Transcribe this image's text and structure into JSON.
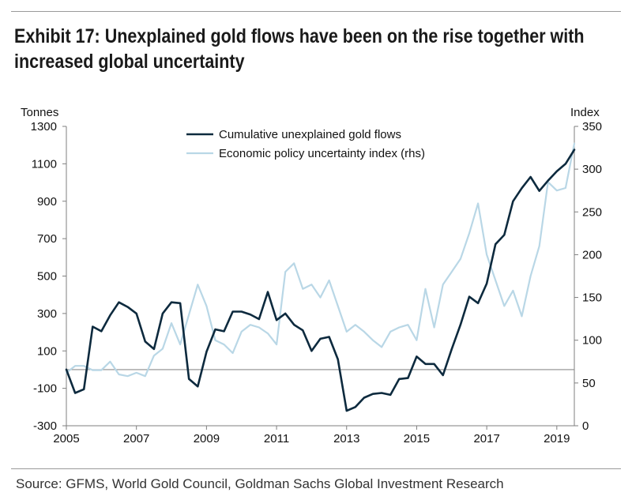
{
  "title": "Exhibit 17: Unexplained gold flows have been on the rise together with increased global uncertainty",
  "source": "Source: GFMS, World Gold Council, Goldman Sachs Global Investment Research",
  "colors": {
    "flows": "#0d2a3e",
    "uncertainty": "#b9d7e6",
    "axis": "#7f7f7f",
    "zero_line": "#8c8c8c"
  },
  "chart_data": {
    "type": "line",
    "title": "Exhibit 17: Unexplained gold flows have been on the rise together with increased global uncertainty",
    "ylabel": "Tonnes",
    "y2label": "Index",
    "xlim": [
      2005,
      2019.5
    ],
    "ylim": [
      -300,
      1300
    ],
    "y2lim": [
      0,
      350
    ],
    "x_ticks": [
      2005,
      2007,
      2009,
      2011,
      2013,
      2015,
      2017,
      2019
    ],
    "x_tick_labels": [
      "2005",
      "2007",
      "2009",
      "2011",
      "2013",
      "2015",
      "2017",
      "2019"
    ],
    "y_ticks": [
      -300,
      -100,
      100,
      300,
      500,
      700,
      900,
      1100,
      1300
    ],
    "y_tick_labels": [
      "-300",
      "-100",
      "100",
      "300",
      "500",
      "700",
      "900",
      "1100",
      "1300"
    ],
    "y2_ticks": [
      0,
      50,
      100,
      150,
      200,
      250,
      300,
      350
    ],
    "y2_tick_labels": [
      "0",
      "50",
      "100",
      "150",
      "200",
      "250",
      "300",
      "350"
    ],
    "zero_line": 0,
    "legend_position": "top-center",
    "series": [
      {
        "name": "Cumulative unexplained gold flows",
        "axis": "left",
        "x": [
          2005.0,
          2005.25,
          2005.5,
          2005.75,
          2006.0,
          2006.25,
          2006.5,
          2006.75,
          2007.0,
          2007.25,
          2007.5,
          2007.75,
          2008.0,
          2008.25,
          2008.5,
          2008.75,
          2009.0,
          2009.25,
          2009.5,
          2009.75,
          2010.0,
          2010.25,
          2010.5,
          2010.75,
          2011.0,
          2011.25,
          2011.5,
          2011.75,
          2012.0,
          2012.25,
          2012.5,
          2012.75,
          2013.0,
          2013.25,
          2013.5,
          2013.75,
          2014.0,
          2014.25,
          2014.5,
          2014.75,
          2015.0,
          2015.25,
          2015.5,
          2015.75,
          2016.0,
          2016.25,
          2016.5,
          2016.75,
          2017.0,
          2017.25,
          2017.5,
          2017.75,
          2018.0,
          2018.25,
          2018.5,
          2018.75,
          2019.0,
          2019.25,
          2019.5
        ],
        "values": [
          0,
          -125,
          -105,
          230,
          205,
          290,
          360,
          335,
          300,
          150,
          110,
          300,
          360,
          355,
          -50,
          -90,
          95,
          215,
          205,
          310,
          310,
          295,
          270,
          415,
          265,
          300,
          240,
          210,
          100,
          165,
          175,
          55,
          -220,
          -200,
          -150,
          -130,
          -125,
          -135,
          -50,
          -45,
          70,
          30,
          30,
          -30,
          110,
          240,
          390,
          355,
          460,
          670,
          720,
          900,
          970,
          1030,
          955,
          1010,
          1060,
          1100,
          1175
        ]
      },
      {
        "name": "Economic policy uncertainty index (rhs)",
        "axis": "right",
        "x": [
          2005.0,
          2005.25,
          2005.5,
          2005.75,
          2006.0,
          2006.25,
          2006.5,
          2006.75,
          2007.0,
          2007.25,
          2007.5,
          2007.75,
          2008.0,
          2008.25,
          2008.5,
          2008.75,
          2009.0,
          2009.25,
          2009.5,
          2009.75,
          2010.0,
          2010.25,
          2010.5,
          2010.75,
          2011.0,
          2011.25,
          2011.5,
          2011.75,
          2012.0,
          2012.25,
          2012.5,
          2012.75,
          2013.0,
          2013.25,
          2013.5,
          2013.75,
          2014.0,
          2014.25,
          2014.5,
          2014.75,
          2015.0,
          2015.25,
          2015.5,
          2015.75,
          2016.0,
          2016.25,
          2016.5,
          2016.75,
          2017.0,
          2017.25,
          2017.5,
          2017.75,
          2018.0,
          2018.25,
          2018.5,
          2018.75,
          2019.0,
          2019.25,
          2019.5
        ],
        "values": [
          62,
          70,
          70,
          65,
          65,
          75,
          60,
          58,
          62,
          58,
          82,
          90,
          120,
          95,
          130,
          165,
          140,
          100,
          95,
          85,
          110,
          118,
          115,
          108,
          95,
          180,
          190,
          160,
          165,
          150,
          170,
          140,
          110,
          118,
          110,
          100,
          92,
          110,
          115,
          118,
          100,
          160,
          115,
          165,
          180,
          195,
          225,
          260,
          200,
          170,
          140,
          158,
          128,
          175,
          210,
          285,
          275,
          278,
          330
        ]
      }
    ]
  }
}
